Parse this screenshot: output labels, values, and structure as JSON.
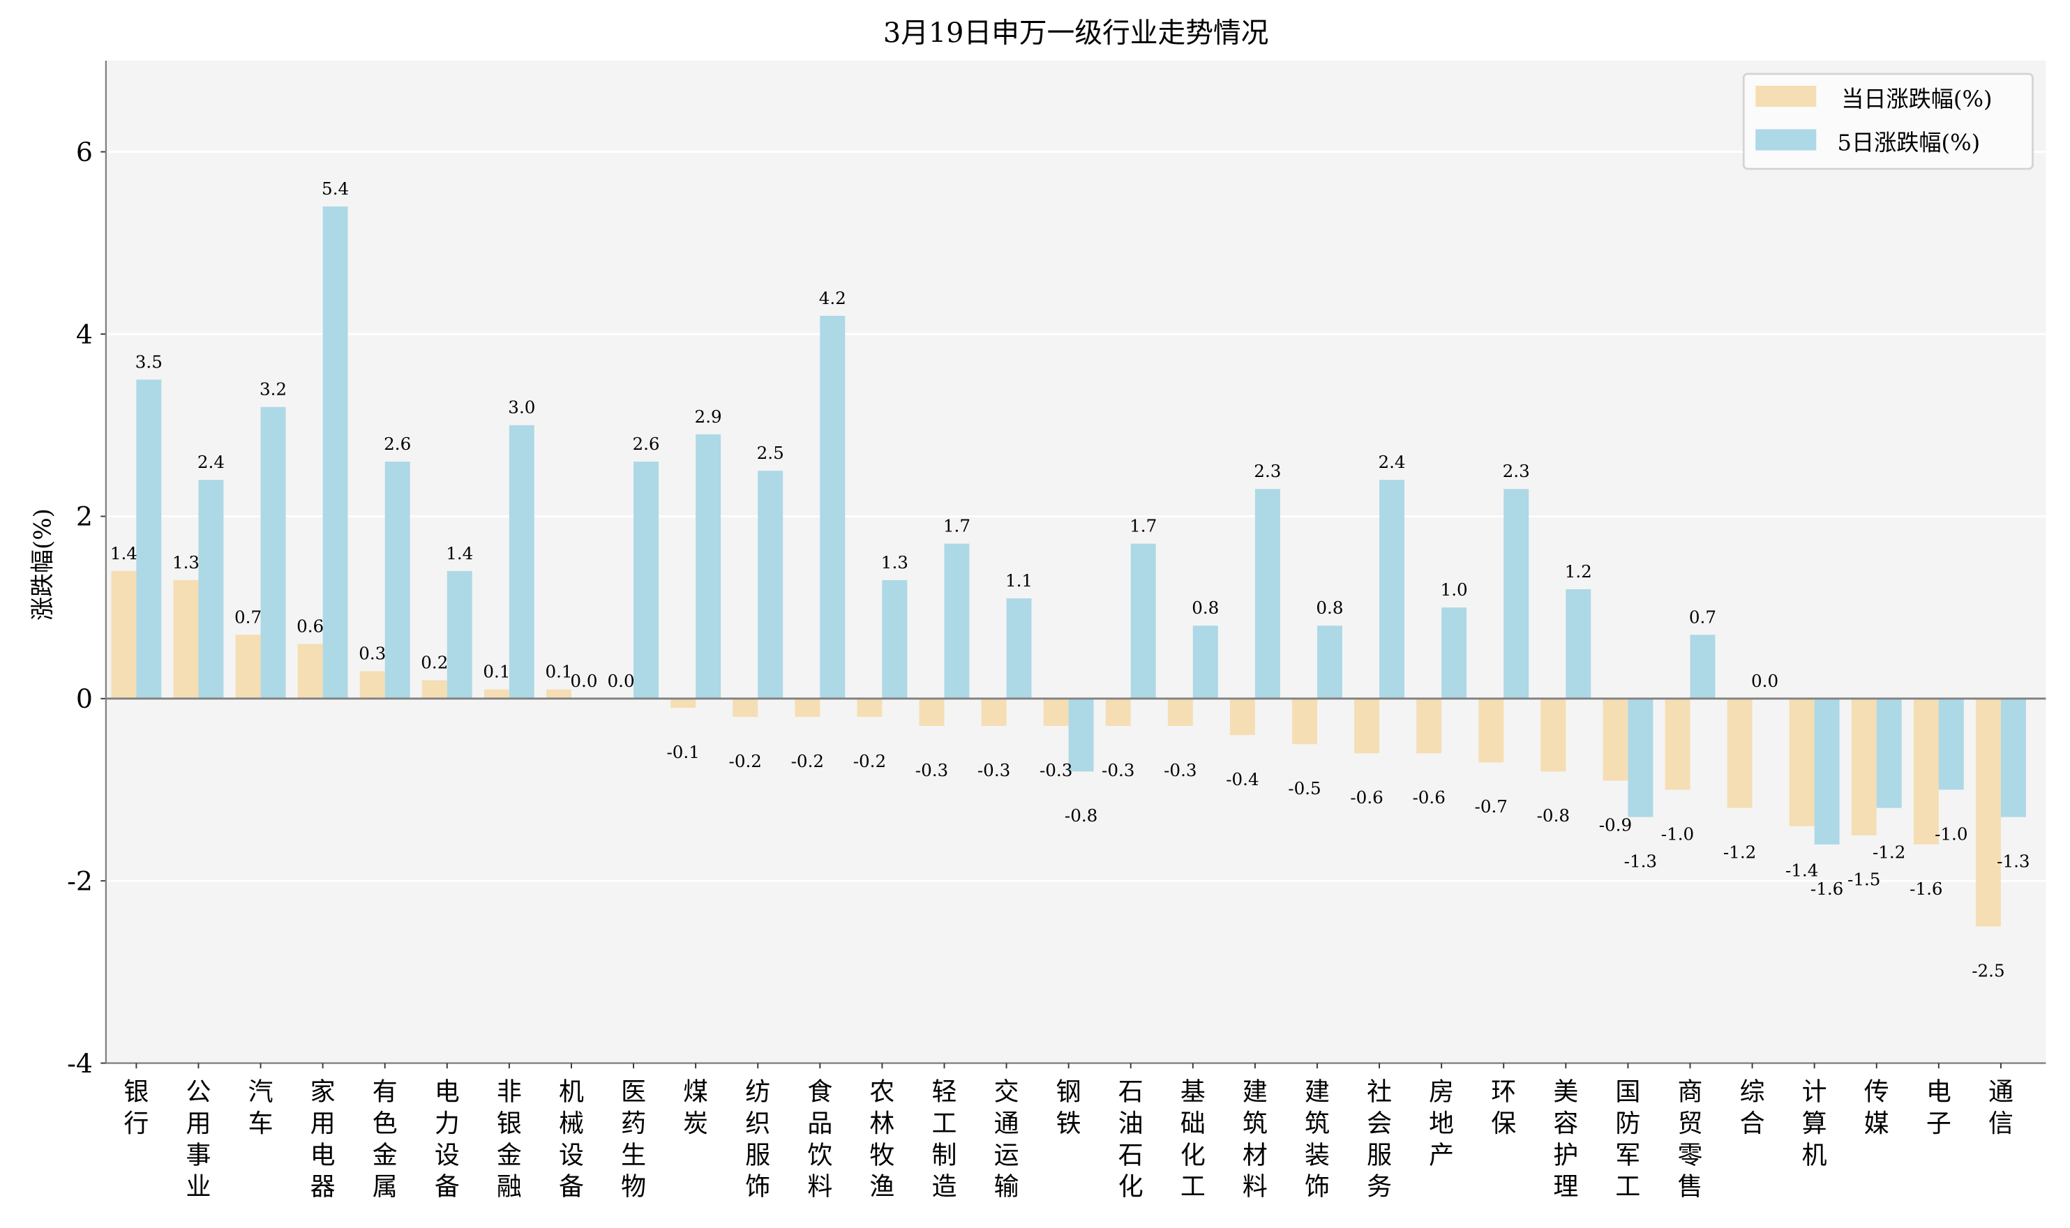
{
  "chart_data": {
    "type": "bar",
    "title": "3月19日申万一级行业走势情况",
    "xlabel": "",
    "ylabel": "涨跌幅(%)",
    "ylim": [
      -4,
      7
    ],
    "yticks": [
      -4,
      -2,
      0,
      2,
      4,
      6
    ],
    "grid": "horizontal",
    "legend_position": "top-right",
    "categories": [
      "银行",
      "公用事业",
      "汽车",
      "家用电器",
      "有色金属",
      "电力设备",
      "非银金融",
      "机械设备",
      "医药生物",
      "煤炭",
      "纺织服饰",
      "食品饮料",
      "农林牧渔",
      "轻工制造",
      "交通运输",
      "钢铁",
      "石油石化",
      "基础化工",
      "建筑材料",
      "建筑装饰",
      "社会服务",
      "房地产",
      "环保",
      "美容护理",
      "国防军工",
      "商贸零售",
      "综合",
      "计算机",
      "传媒",
      "电子",
      "通信"
    ],
    "series": [
      {
        "name": "当日涨跌幅(%)",
        "color": "#f5deb3",
        "values": [
          1.4,
          1.3,
          0.7,
          0.6,
          0.3,
          0.2,
          0.1,
          0.1,
          0.0,
          -0.1,
          -0.2,
          -0.2,
          -0.2,
          -0.3,
          -0.3,
          -0.3,
          -0.3,
          -0.3,
          -0.4,
          -0.5,
          -0.6,
          -0.6,
          -0.7,
          -0.8,
          -0.9,
          -1.0,
          -1.2,
          -1.4,
          -1.5,
          -1.6,
          -2.5
        ]
      },
      {
        "name": "5日涨跌幅(%)",
        "color": "#add8e6",
        "values": [
          3.5,
          2.4,
          3.2,
          5.4,
          2.6,
          1.4,
          3.0,
          0.0,
          2.6,
          2.9,
          2.5,
          4.2,
          1.3,
          1.7,
          1.1,
          -0.8,
          1.7,
          0.8,
          2.3,
          0.8,
          2.4,
          1.0,
          2.3,
          1.2,
          -1.3,
          0.7,
          0.0,
          -1.6,
          -1.2,
          -1.0,
          -1.3
        ]
      }
    ]
  }
}
